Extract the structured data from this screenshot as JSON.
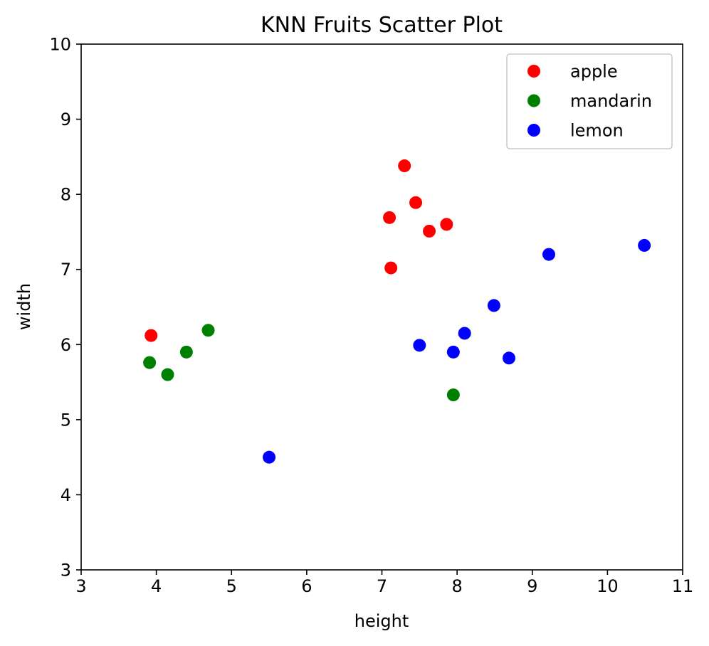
{
  "chart_data": {
    "type": "scatter",
    "title": "KNN Fruits Scatter Plot",
    "xlabel": "height",
    "ylabel": "width",
    "xlim": [
      3,
      11
    ],
    "ylim": [
      3,
      10
    ],
    "x_ticks": [
      "3",
      "4",
      "5",
      "6",
      "7",
      "8",
      "9",
      "10",
      "11"
    ],
    "y_ticks": [
      "3",
      "4",
      "5",
      "6",
      "7",
      "8",
      "9",
      "10"
    ],
    "grid": false,
    "legend_position": "top-right",
    "series": [
      {
        "name": "apple",
        "color": "#ff0000",
        "x": [
          3.93,
          7.1,
          7.12,
          7.3,
          7.45,
          7.63,
          7.86
        ],
        "y": [
          6.12,
          7.69,
          7.02,
          8.38,
          7.89,
          7.51,
          7.6
        ]
      },
      {
        "name": "mandarin",
        "color": "#008000",
        "x": [
          3.91,
          4.15,
          4.4,
          4.69,
          7.95
        ],
        "y": [
          5.76,
          5.6,
          5.9,
          6.19,
          5.33
        ]
      },
      {
        "name": "lemon",
        "color": "#0000ff",
        "x": [
          5.5,
          7.5,
          7.95,
          8.1,
          8.49,
          8.69,
          9.22,
          10.49
        ],
        "y": [
          4.5,
          5.99,
          5.9,
          6.15,
          6.52,
          5.82,
          7.2,
          7.32
        ]
      }
    ]
  }
}
